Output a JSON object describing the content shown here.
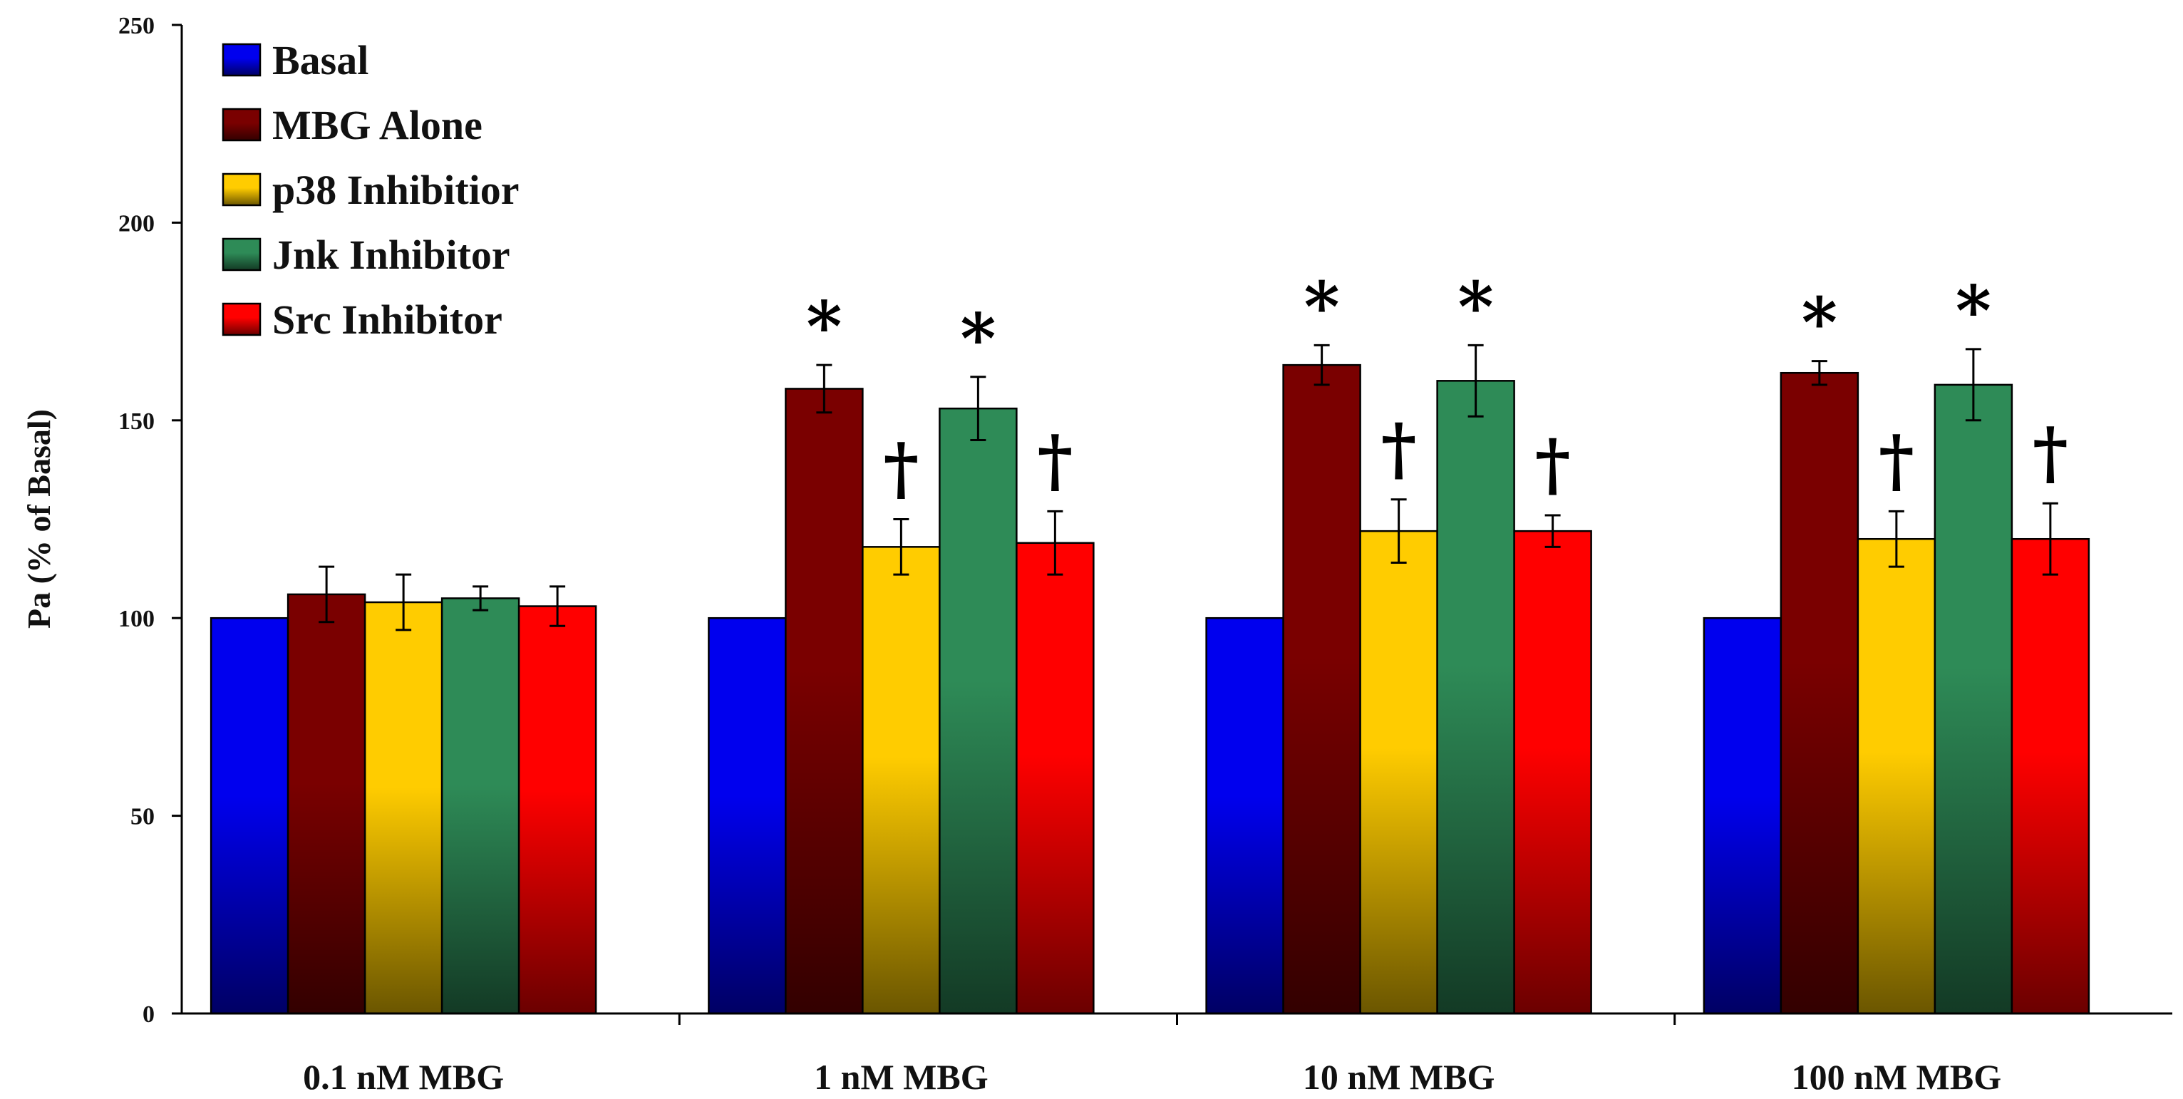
{
  "chart_data": {
    "type": "bar",
    "title": "",
    "xlabel": "",
    "ylabel": "Pa (% of Basal)",
    "ylim": [
      0,
      250
    ],
    "yticks": [
      "0",
      "50",
      "100",
      "150",
      "200",
      "250"
    ],
    "categories": [
      "0.1 nM MBG",
      "1 nM MBG",
      "10 nM MBG",
      "100 nM MBG"
    ],
    "legend_position": "top-left",
    "series": [
      {
        "name": "Basal",
        "color": "#0000ee",
        "values": [
          100,
          100,
          100,
          100
        ],
        "errors": [
          0,
          0,
          0,
          0
        ],
        "marks": [
          "",
          "",
          "",
          ""
        ]
      },
      {
        "name": "MBG Alone",
        "color": "#7a0000",
        "values": [
          106,
          158,
          164,
          162
        ],
        "errors": [
          7,
          6,
          5,
          3
        ],
        "marks": [
          "",
          "*",
          "*",
          "*"
        ]
      },
      {
        "name": "p38 Inhibitior",
        "color": "#ffcc00",
        "values": [
          104,
          118,
          122,
          120
        ],
        "errors": [
          7,
          7,
          8,
          7
        ],
        "marks": [
          "",
          "†",
          "†",
          "†"
        ]
      },
      {
        "name": "Jnk Inhibitor",
        "color": "#2e8b57",
        "values": [
          105,
          153,
          160,
          159
        ],
        "errors": [
          3,
          8,
          9,
          9
        ],
        "marks": [
          "",
          "*",
          "*",
          "*"
        ]
      },
      {
        "name": "Src Inhibitor",
        "color": "#ff0000",
        "values": [
          103,
          119,
          122,
          120
        ],
        "errors": [
          5,
          8,
          4,
          9
        ],
        "marks": [
          "",
          "†",
          "†",
          "†"
        ]
      }
    ]
  }
}
